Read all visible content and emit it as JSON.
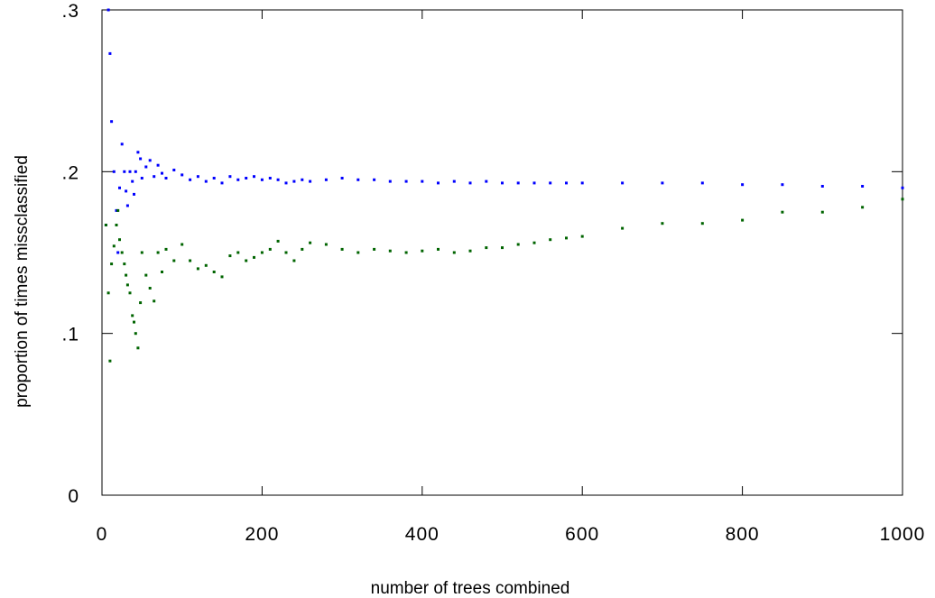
{
  "chart_data": {
    "type": "scatter",
    "title": "",
    "xlabel": "number of trees combined",
    "ylabel": "proportion of times missclassified",
    "xlim": [
      0,
      1000
    ],
    "ylim": [
      0,
      0.3
    ],
    "x_ticks": [
      0,
      200,
      400,
      600,
      800,
      1000
    ],
    "x_tick_labels": [
      "0",
      "200",
      "400",
      "600",
      "800",
      "1000"
    ],
    "y_ticks": [
      0,
      0.1,
      0.2,
      0.3
    ],
    "y_tick_labels": [
      "0",
      ".1",
      ".2",
      ".3"
    ],
    "grid": false,
    "legend": "none",
    "series": [
      {
        "color": "#0000ff",
        "x": [
          5,
          8,
          10,
          12,
          15,
          18,
          20,
          22,
          25,
          28,
          30,
          32,
          35,
          38,
          40,
          42,
          45,
          48,
          50,
          55,
          60,
          65,
          70,
          75,
          80,
          90,
          100,
          110,
          120,
          130,
          140,
          150,
          160,
          170,
          180,
          190,
          200,
          210,
          220,
          230,
          240,
          250,
          260,
          280,
          300,
          320,
          340,
          360,
          380,
          400,
          420,
          440,
          460,
          480,
          500,
          520,
          540,
          560,
          580,
          600,
          650,
          700,
          750,
          800,
          850,
          900,
          950,
          1000
        ],
        "y": [
          0.167,
          0.3,
          0.273,
          0.231,
          0.2,
          0.176,
          0.15,
          0.19,
          0.217,
          0.2,
          0.188,
          0.179,
          0.2,
          0.194,
          0.186,
          0.2,
          0.212,
          0.208,
          0.196,
          0.203,
          0.207,
          0.197,
          0.204,
          0.199,
          0.196,
          0.201,
          0.198,
          0.195,
          0.197,
          0.194,
          0.196,
          0.193,
          0.197,
          0.195,
          0.196,
          0.197,
          0.195,
          0.196,
          0.195,
          0.193,
          0.194,
          0.195,
          0.194,
          0.195,
          0.196,
          0.195,
          0.195,
          0.194,
          0.194,
          0.194,
          0.193,
          0.194,
          0.193,
          0.194,
          0.193,
          0.193,
          0.193,
          0.193,
          0.193,
          0.193,
          0.193,
          0.193,
          0.193,
          0.192,
          0.192,
          0.191,
          0.191,
          0.19
        ]
      },
      {
        "color": "#006400",
        "x": [
          5,
          8,
          10,
          12,
          15,
          18,
          20,
          22,
          25,
          28,
          30,
          32,
          35,
          38,
          40,
          42,
          45,
          48,
          50,
          55,
          60,
          65,
          70,
          75,
          80,
          90,
          100,
          110,
          120,
          130,
          140,
          150,
          160,
          170,
          180,
          190,
          200,
          210,
          220,
          230,
          240,
          250,
          260,
          280,
          300,
          320,
          340,
          360,
          380,
          400,
          420,
          440,
          460,
          480,
          500,
          520,
          540,
          560,
          580,
          600,
          650,
          700,
          750,
          800,
          850,
          900,
          950,
          1000
        ],
        "y": [
          0.167,
          0.125,
          0.083,
          0.143,
          0.154,
          0.167,
          0.176,
          0.158,
          0.15,
          0.143,
          0.136,
          0.13,
          0.125,
          0.111,
          0.107,
          0.1,
          0.091,
          0.119,
          0.15,
          0.136,
          0.128,
          0.12,
          0.15,
          0.138,
          0.152,
          0.145,
          0.155,
          0.145,
          0.14,
          0.142,
          0.138,
          0.135,
          0.148,
          0.15,
          0.145,
          0.147,
          0.15,
          0.152,
          0.157,
          0.15,
          0.145,
          0.152,
          0.156,
          0.155,
          0.152,
          0.15,
          0.152,
          0.151,
          0.15,
          0.151,
          0.152,
          0.15,
          0.151,
          0.153,
          0.153,
          0.155,
          0.156,
          0.158,
          0.159,
          0.16,
          0.165,
          0.168,
          0.168,
          0.17,
          0.175,
          0.175,
          0.178,
          0.183
        ]
      }
    ]
  }
}
